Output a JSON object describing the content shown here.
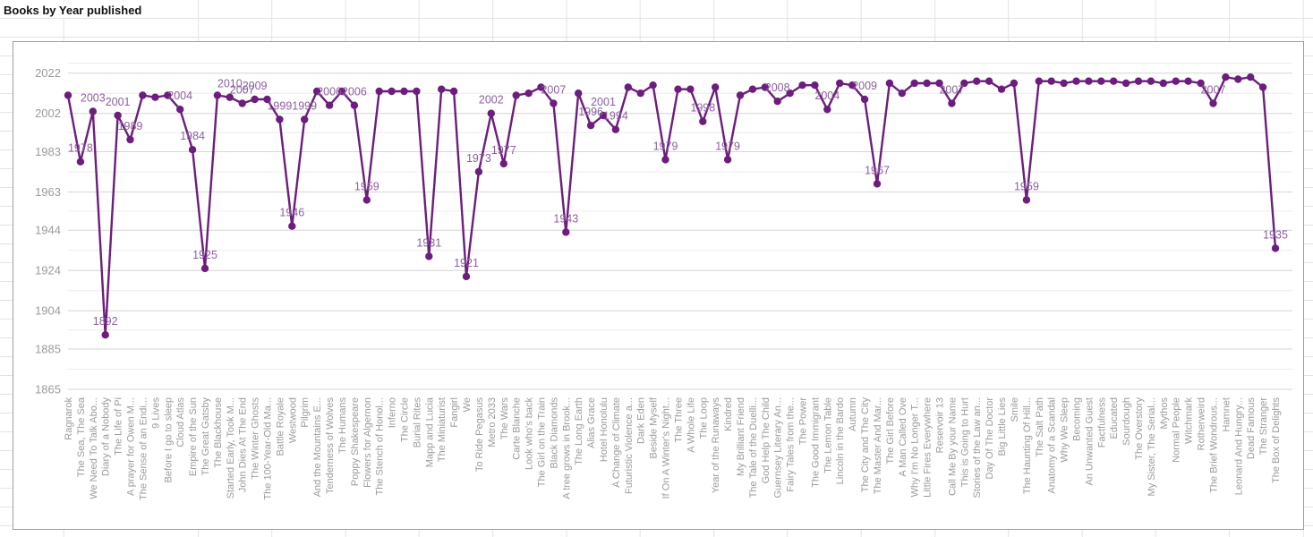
{
  "sheet": {
    "title_cell": "Books by Year published"
  },
  "chart_data": {
    "type": "line",
    "title": "Books by Year published",
    "xlabel": "",
    "ylabel": "",
    "legend": "none",
    "grid": true,
    "ylim": [
      1860,
      2027
    ],
    "yticks": [
      2022,
      2002,
      1983,
      1963,
      1944,
      1924,
      1904,
      1885,
      1865
    ],
    "categories": [
      "Ragnarok",
      "The Sea, The Sea",
      "We Need To Talk Abo...",
      "Diary of a Nobody",
      "The Life of Pi",
      "A prayer for Owen M...",
      "The Sense of an Endi...",
      "9 Lives",
      "Before I go to sleep",
      "Cloud Atlas",
      "Empire of the Sun",
      "The Great Gatsby",
      "The Blackhouse",
      "Started Early, Took M...",
      "John Dies At The End",
      "The Winter Ghosts",
      "The 100-Year-Old Ma...",
      "Battle Royale",
      "Westwood",
      "Pilgrim",
      "And the Mountains E...",
      "Tenderness of Wolves",
      "The Humans",
      "Poppy Shakespeare",
      "Flowers for Algernon",
      "The Stench of Honol...",
      "Inferno",
      "The Circle",
      "Burial Rites",
      "Mapp and Lucia",
      "The Miniaturist",
      "Fangirl",
      "We",
      "To Ride Pegasus",
      "Metro 2033",
      "The Wars",
      "Carte Blanche",
      "Look who's back",
      "The Girl on the Train",
      "Black Diamonds",
      "A tree grows in Brook...",
      "The Long Earth",
      "Alias Grace",
      "Hotel Honolulu",
      "A Change of Climate",
      "Futuristic Violence a...",
      "Dark Eden",
      "Beside Myself",
      "If On A Winter's Night...",
      "The Three",
      "A Whole Life",
      "The Loop",
      "Year of the Runaways",
      "Kindred",
      "My Brilliant Friend",
      "The Tale of the Duelli...",
      "God Help The Child",
      "Guernsey Literary An...",
      "Fairy Tales from the...",
      "The Power",
      "The Good Immigrant",
      "The Lemon Table",
      "Lincoln in the Bardo",
      "Autumn",
      "The City and The City",
      "The Master And Mar...",
      "The Girl Before",
      "A Man Called Ove",
      "Why I'm No Longer T...",
      "Little Fires Everywhere",
      "Reservoir 13",
      "Call Me By your Name",
      "This is Going to Hurt",
      "Stories of the Law an...",
      "Day Of The Doctor",
      "Big Little Lies",
      "Smile",
      "The Haunting Of Hill...",
      "The Salt Path",
      "Anatomy of a Scandal",
      "Why We Sleep",
      "Becoming",
      "An Unwanted Guest",
      "Factfulness",
      "Educated",
      "Sourdough",
      "The Overstory",
      "My Sister, The Serial...",
      "Mythos",
      "Normal People",
      "Witchmark",
      "Rotherweird",
      "The Brief Wondrous...",
      "Hamnet",
      "Leonard And Hungry...",
      "Dead Famous",
      "The Stranger",
      "The Box of Delights"
    ],
    "values": [
      2011,
      1978,
      2003,
      1892,
      2001,
      1989,
      2011,
      2010,
      2011,
      2004,
      1984,
      1925,
      2011,
      2010,
      2007,
      2009,
      2009,
      1999,
      1946,
      1999,
      2013,
      2006,
      2013,
      2006,
      1959,
      2013,
      2013,
      2013,
      2013,
      1931,
      2014,
      2013,
      1921,
      1973,
      2002,
      1977,
      2011,
      2012,
      2015,
      2007,
      1943,
      2012,
      1996,
      2001,
      1994,
      2015,
      2012,
      2016,
      1979,
      2014,
      2014,
      1998,
      2015,
      1979,
      2011,
      2014,
      2015,
      2008,
      2012,
      2016,
      2016,
      2004,
      2017,
      2016,
      2009,
      1967,
      2017,
      2012,
      2017,
      2017,
      2017,
      2007,
      2017,
      2018,
      2018,
      2014,
      2017,
      1959,
      2018,
      2018,
      2017,
      2018,
      2018,
      2018,
      2018,
      2017,
      2018,
      2018,
      2017,
      2018,
      2018,
      2017,
      2007,
      2020,
      2019,
      2020,
      2015,
      1935
    ],
    "annotations": [
      {
        "index": 1,
        "text": "1978"
      },
      {
        "index": 2,
        "text": "2003"
      },
      {
        "index": 3,
        "text": "1892"
      },
      {
        "index": 4,
        "text": "2001"
      },
      {
        "index": 5,
        "text": "1989"
      },
      {
        "index": 9,
        "text": "2004"
      },
      {
        "index": 10,
        "text": "1984"
      },
      {
        "index": 11,
        "text": "1925"
      },
      {
        "index": 13,
        "text": "2010"
      },
      {
        "index": 14,
        "text": "2007"
      },
      {
        "index": 15,
        "text": "2009"
      },
      {
        "index": 17,
        "text": "1999"
      },
      {
        "index": 18,
        "text": "1946"
      },
      {
        "index": 19,
        "text": "1999"
      },
      {
        "index": 21,
        "text": "2006"
      },
      {
        "index": 23,
        "text": "2006"
      },
      {
        "index": 24,
        "text": "1959"
      },
      {
        "index": 29,
        "text": "1931"
      },
      {
        "index": 32,
        "text": "1921"
      },
      {
        "index": 33,
        "text": "1973"
      },
      {
        "index": 34,
        "text": "2002"
      },
      {
        "index": 35,
        "text": "1977"
      },
      {
        "index": 39,
        "text": "2007"
      },
      {
        "index": 40,
        "text": "1943"
      },
      {
        "index": 42,
        "text": "1996"
      },
      {
        "index": 43,
        "text": "2001"
      },
      {
        "index": 44,
        "text": "1994"
      },
      {
        "index": 48,
        "text": "1979"
      },
      {
        "index": 51,
        "text": "1998"
      },
      {
        "index": 53,
        "text": "1979"
      },
      {
        "index": 57,
        "text": "2008"
      },
      {
        "index": 61,
        "text": "2004"
      },
      {
        "index": 64,
        "text": "2009"
      },
      {
        "index": 65,
        "text": "1967"
      },
      {
        "index": 71,
        "text": "2007"
      },
      {
        "index": 77,
        "text": "1959"
      },
      {
        "index": 92,
        "text": "2007"
      },
      {
        "index": 97,
        "text": "1935"
      }
    ],
    "colors": {
      "series": "#6c1d7d",
      "annotation": "#8d5f9f",
      "axis_text": "#9b9b9b",
      "grid_major": "#d6d6d6",
      "grid_minor": "#ececec"
    }
  }
}
